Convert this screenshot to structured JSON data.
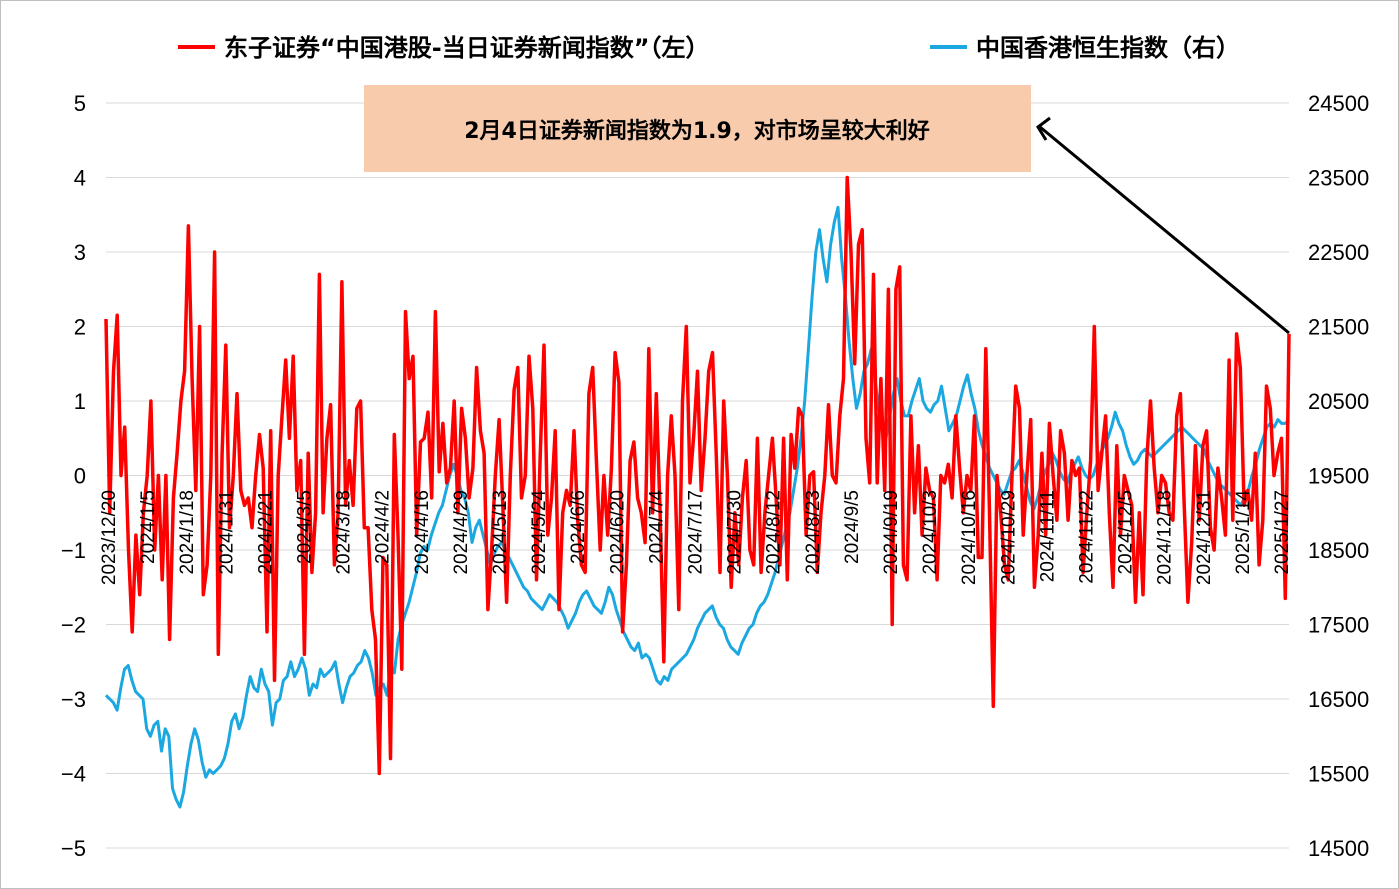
{
  "chart_data": {
    "type": "line",
    "title": "",
    "legend": {
      "placement": "top",
      "items": [
        {
          "name": "东子证券“中国港股-当日证券新闻指数”（左）",
          "color": "#ff0000"
        },
        {
          "name": "中国香港恒生指数（右）",
          "color": "#1ba8e0"
        }
      ]
    },
    "annotation": {
      "text": "2月4日证券新闻指数为1.9，对市场呈较大利好",
      "background": "#f8cbad"
    },
    "y_left": {
      "range": [
        -5,
        5
      ],
      "ticks": [
        "5",
        "4",
        "3",
        "2",
        "1",
        "0",
        "−1",
        "−2",
        "−3",
        "−4",
        "−5"
      ]
    },
    "y_right": {
      "range": [
        14500,
        24500
      ],
      "ticks": [
        "24500",
        "23500",
        "22500",
        "21500",
        "20500",
        "19500",
        "18500",
        "17500",
        "16500",
        "15500",
        "14500"
      ]
    },
    "x_ticks": [
      "2023/12/20",
      "2024/1/5",
      "2024/1/18",
      "2024/1/31",
      "2024/2/21",
      "2024/3/5",
      "2024/3/18",
      "2024/4/2",
      "2024/4/16",
      "2024/4/29",
      "2024/5/13",
      "2024/5/24",
      "2024/6/6",
      "2024/6/20",
      "2024/7/4",
      "2024/7/17",
      "2024/7/30",
      "2024/8/12",
      "2024/8/23",
      "2024/9/5",
      "2024/9/19",
      "2024/10/3",
      "2024/10/16",
      "2024/10/29",
      "2024/11/11",
      "2024/11/22",
      "2024/12/5",
      "2024/12/18",
      "2024/12/31",
      "2025/1/14",
      "2025/1/27"
    ],
    "grid": "horizontal",
    "series": [
      {
        "name": "东子证券“中国港股-当日证券新闻指数”（左）",
        "axis": "left",
        "color": "#ff0000",
        "values": [
          2.1,
          -0.5,
          1.4,
          2.15,
          0.0,
          0.65,
          -1.0,
          -2.1,
          -0.8,
          -1.6,
          -0.5,
          0.0,
          1.0,
          -1.0,
          0.0,
          -1.4,
          0.0,
          -2.2,
          -0.3,
          0.3,
          1.0,
          1.4,
          3.35,
          1.3,
          -0.2,
          2.0,
          -1.6,
          -1.2,
          0.0,
          3.0,
          -2.4,
          0.3,
          1.75,
          -0.7,
          0.0,
          1.1,
          -0.2,
          -0.4,
          -0.3,
          -0.7,
          0.0,
          0.55,
          0.1,
          -2.1,
          0.6,
          -2.75,
          0.0,
          0.8,
          1.55,
          0.5,
          1.6,
          -0.2,
          0.2,
          -2.4,
          0.3,
          -1.3,
          -0.5,
          2.7,
          -0.5,
          0.5,
          0.95,
          -1.2,
          -0.5,
          2.6,
          -0.4,
          0.2,
          -0.4,
          0.9,
          1.0,
          -0.7,
          -0.7,
          -1.8,
          -2.2,
          -4.0,
          -1.1,
          -1.2,
          -3.8,
          0.55,
          -0.8,
          -2.6,
          2.2,
          1.3,
          1.6,
          -0.8,
          0.45,
          0.5,
          0.85,
          -0.3,
          2.2,
          0.05,
          0.7,
          -0.1,
          0.1,
          1.0,
          -0.5,
          0.9,
          0.5,
          -0.3,
          0.1,
          1.45,
          0.6,
          0.3,
          -1.8,
          -1.0,
          0.0,
          0.75,
          -0.4,
          -1.7,
          0.0,
          1.15,
          1.45,
          -0.3,
          0.0,
          1.6,
          0.9,
          -1.4,
          0.3,
          1.75,
          -0.8,
          -0.3,
          0.6,
          -1.8,
          -0.5,
          -0.2,
          -0.4,
          0.6,
          -0.6,
          -1.2,
          -1.3,
          1.1,
          1.45,
          0.2,
          -1.0,
          0.0,
          -0.8,
          0.1,
          1.65,
          1.25,
          -2.1,
          -1.2,
          0.2,
          0.45,
          -0.3,
          -0.5,
          -0.9,
          1.7,
          -0.5,
          1.1,
          -0.5,
          -2.5,
          0.0,
          0.8,
          0.0,
          -1.8,
          1.0,
          2.0,
          -0.1,
          0.55,
          1.4,
          -0.2,
          0.5,
          1.4,
          1.65,
          0.3,
          -1.3,
          1.0,
          0.0,
          -1.5,
          -0.5,
          -1.2,
          -0.3,
          0.2,
          -1.0,
          -1.2,
          0.5,
          -1.3,
          -0.5,
          0.0,
          0.5,
          -0.3,
          -1.2,
          0.5,
          -1.4,
          0.55,
          0.1,
          0.9,
          0.8,
          -0.8,
          0.0,
          0.05,
          -1.3,
          -0.5,
          0.0,
          0.95,
          0.0,
          -0.1,
          0.8,
          1.3,
          4.0,
          3.0,
          1.5,
          3.1,
          3.3,
          0.5,
          -0.1,
          2.7,
          -0.1,
          1.3,
          -0.2,
          2.5,
          -2.0,
          2.5,
          2.8,
          -1.2,
          -1.4,
          0.8,
          -0.5,
          0.4,
          -0.8,
          0.1,
          -0.2,
          -0.3,
          -1.4,
          0.0,
          -0.1,
          0.15,
          -0.3,
          0.8,
          0.1,
          -0.5,
          0.0,
          -0.2,
          0.8,
          -1.1,
          -1.1,
          1.7,
          -0.5,
          -3.1,
          0.0,
          -0.5,
          -1.2,
          -1.4,
          0.0,
          1.2,
          0.9,
          -0.8,
          0.0,
          0.75,
          -1.5,
          -0.8,
          0.3,
          -0.8,
          0.7,
          0.0,
          -0.6,
          0.6,
          0.3,
          -0.6,
          0.2,
          0.0,
          0.1,
          -1.3,
          -0.5,
          0.2,
          2.0,
          -0.2,
          0.3,
          0.8,
          -0.5,
          -1.5,
          0.4,
          -0.8,
          0.0,
          -0.2,
          -0.4,
          -1.7,
          -0.5,
          -1.6,
          0.2,
          1.0,
          0.1,
          -0.5,
          0.0,
          -0.1,
          -0.5,
          -0.6,
          0.8,
          1.1,
          -0.4,
          -1.7,
          -0.9,
          0.4,
          -0.6,
          0.4,
          0.6,
          -0.7,
          -1.0,
          0.1,
          -0.3,
          -0.8,
          1.55,
          -0.6,
          1.9,
          1.45,
          -0.4,
          -0.2,
          -0.6,
          0.3,
          -1.2,
          -0.6,
          1.2,
          0.9,
          0.0,
          0.3,
          0.5,
          -1.65,
          1.9
        ]
      },
      {
        "name": "中国香港恒生指数（右）",
        "axis": "right",
        "color": "#1ba8e0",
        "values": [
          16550,
          16500,
          16450,
          16350,
          16650,
          16900,
          16950,
          16750,
          16600,
          16550,
          16500,
          16100,
          16000,
          16150,
          16200,
          15800,
          16100,
          16000,
          15300,
          15150,
          15050,
          15250,
          15600,
          15900,
          16100,
          15950,
          15650,
          15450,
          15550,
          15500,
          15550,
          15600,
          15700,
          15900,
          16200,
          16300,
          16100,
          16250,
          16550,
          16800,
          16650,
          16600,
          16900,
          16700,
          16600,
          16150,
          16450,
          16500,
          16750,
          16800,
          17000,
          16800,
          16900,
          17050,
          16900,
          16550,
          16700,
          16650,
          16900,
          16800,
          16850,
          16900,
          17000,
          16700,
          16450,
          16650,
          16800,
          16850,
          16950,
          17000,
          17150,
          17050,
          16850,
          16550,
          16650,
          16700,
          16550,
          16950,
          16850,
          17300,
          17500,
          17650,
          17800,
          18000,
          18200,
          18450,
          18550,
          18500,
          18700,
          18850,
          19000,
          19100,
          19300,
          19500,
          19650,
          19500,
          19300,
          19200,
          19000,
          18600,
          18800,
          18900,
          18700,
          18500,
          18300,
          18450,
          18550,
          18600,
          18500,
          18400,
          18300,
          18200,
          18100,
          18000,
          17950,
          17850,
          17800,
          17750,
          17700,
          17800,
          17900,
          17850,
          17800,
          17700,
          17600,
          17450,
          17550,
          17650,
          17800,
          17900,
          17950,
          17850,
          17750,
          17700,
          17650,
          17800,
          18000,
          17900,
          17700,
          17550,
          17400,
          17300,
          17200,
          17150,
          17250,
          17050,
          17100,
          17050,
          16900,
          16750,
          16700,
          16800,
          16750,
          16900,
          16950,
          17000,
          17050,
          17100,
          17200,
          17300,
          17450,
          17550,
          17650,
          17700,
          17750,
          17600,
          17500,
          17450,
          17300,
          17200,
          17150,
          17100,
          17250,
          17350,
          17450,
          17500,
          17650,
          17750,
          17800,
          17900,
          18050,
          18200,
          18400,
          18600,
          18800,
          19000,
          19300,
          19600,
          20000,
          20500,
          21200,
          21900,
          22500,
          22800,
          22400,
          22100,
          22600,
          22900,
          23100,
          22400,
          21900,
          21300,
          20800,
          20400,
          20600,
          20900,
          21000,
          21200,
          20800,
          20400,
          20200,
          20000,
          20300,
          20600,
          20800,
          20500,
          20300,
          20300,
          20500,
          20650,
          20800,
          20500,
          20400,
          20350,
          20450,
          20500,
          20700,
          20400,
          20100,
          20200,
          20300,
          20500,
          20700,
          20850,
          20600,
          20400,
          20100,
          19900,
          19750,
          19600,
          19500,
          19400,
          19300,
          19250,
          19400,
          19550,
          19600,
          19700,
          19550,
          19350,
          19150,
          19050,
          19200,
          19400,
          19550,
          19650,
          19800,
          19700,
          19550,
          19450,
          19400,
          19550,
          19650,
          19750,
          19600,
          19500,
          19450,
          19500,
          19650,
          19800,
          19900,
          20000,
          20150,
          20350,
          20200,
          20100,
          19900,
          19750,
          19650,
          19700,
          19800,
          19850,
          19800,
          19750,
          19800,
          19850,
          19900,
          19950,
          20000,
          20050,
          20100,
          20150,
          20100,
          20050,
          20000,
          19950,
          19900,
          19850,
          19700,
          19600,
          19500,
          19400,
          19350,
          19300,
          19250,
          19200,
          19150,
          19100,
          19200,
          19300,
          19500,
          19650,
          19850,
          20000,
          20150,
          20200,
          20150,
          20250,
          20200,
          20200,
          20250
        ]
      }
    ]
  }
}
